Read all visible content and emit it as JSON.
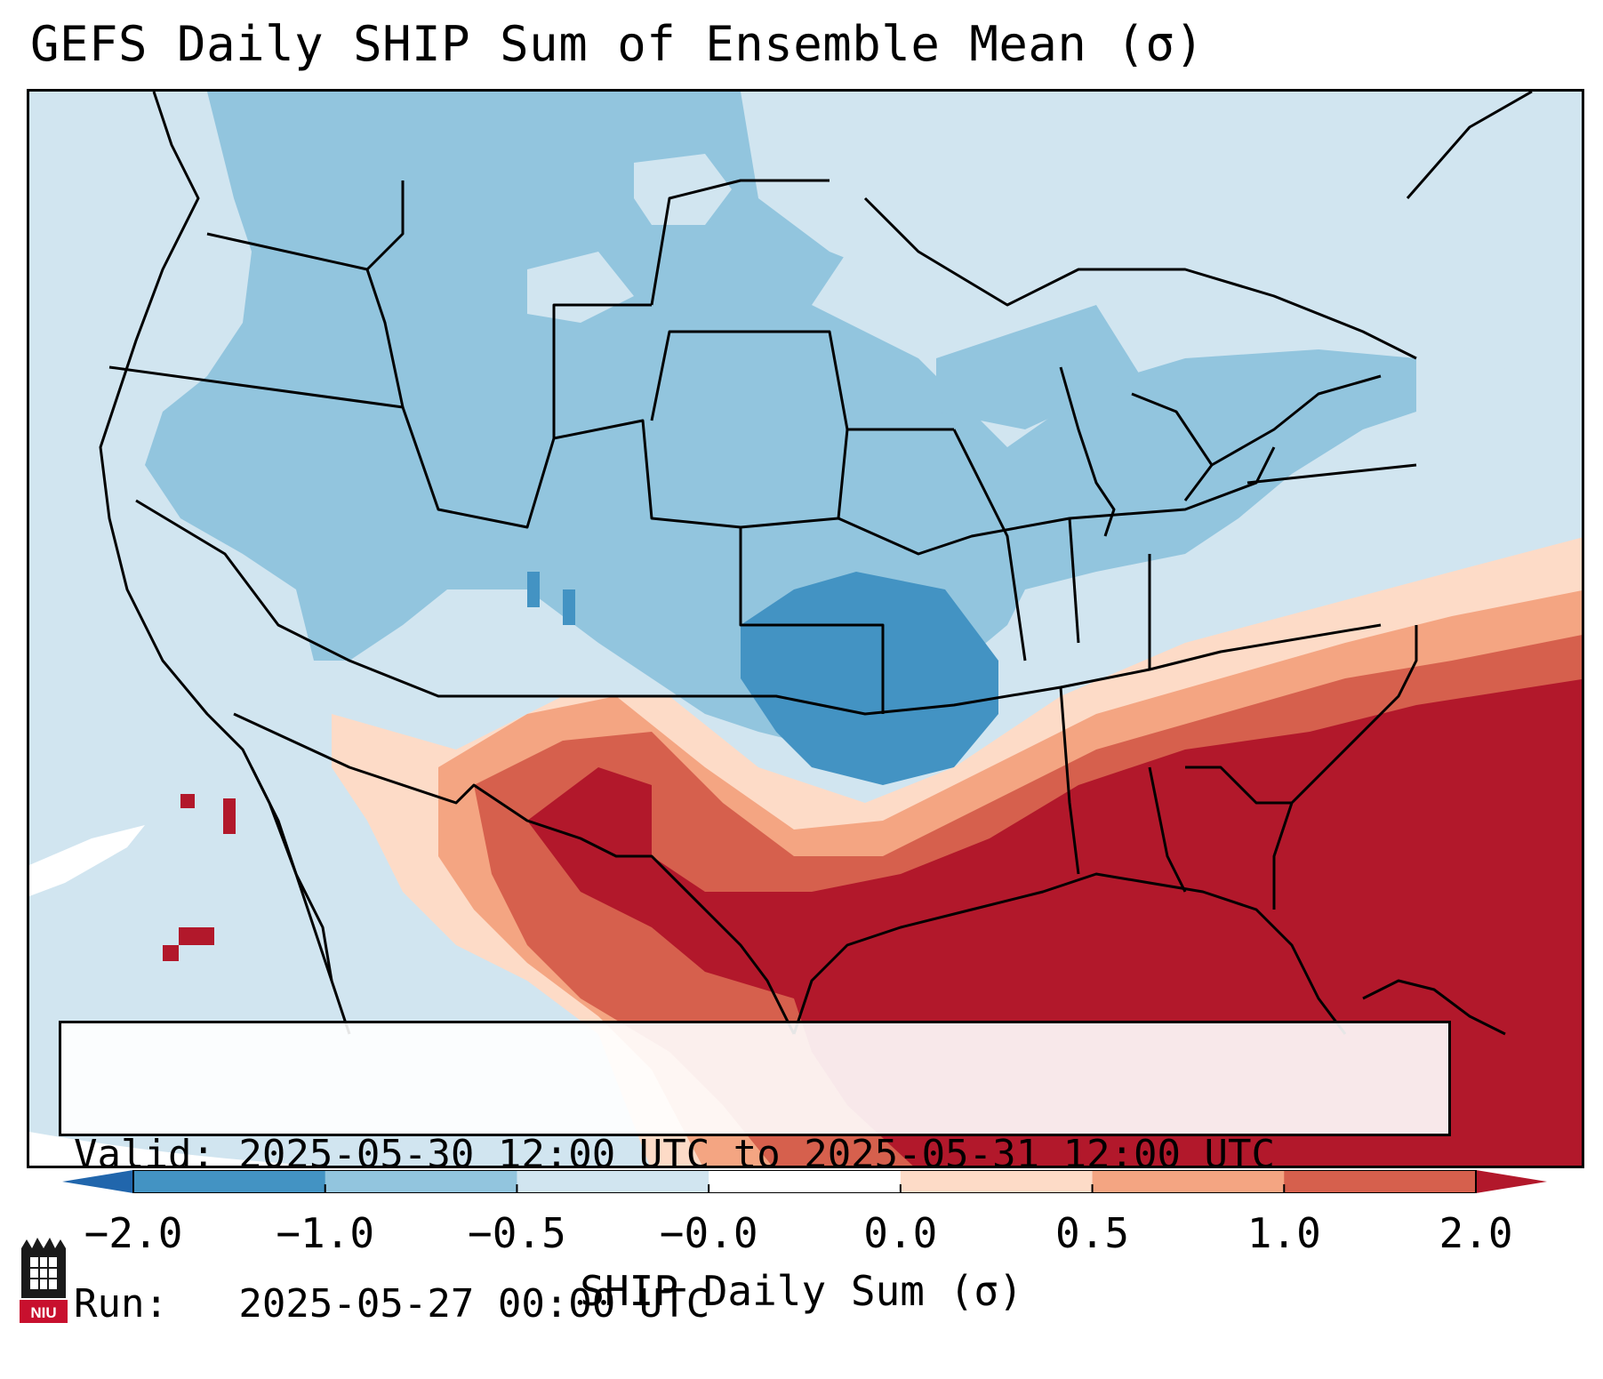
{
  "title": "GEFS Daily SHIP Sum of Ensemble Mean (σ)",
  "valid_text": {
    "line1": "Valid: 2025-05-30 12:00 UTC to 2025-05-31 12:00 UTC",
    "line2": "Run:   2025-05-27 00:00 UTC"
  },
  "colorbar": {
    "label": "SHIP Daily Sum (σ)",
    "ticks": [
      "−2.0",
      "−1.0",
      "−0.5",
      "−0.0",
      "0.0",
      "0.5",
      "1.0",
      "2.0"
    ],
    "bins": [
      {
        "range": "-2.0 to -1.0",
        "color": "#4393c3"
      },
      {
        "range": "-1.0 to -0.5",
        "color": "#92c5de"
      },
      {
        "range": "-0.5 to -0.0",
        "color": "#d1e5f0"
      },
      {
        "range": "-0.0 to 0.0",
        "color": "#ffffff"
      },
      {
        "range": "0.0 to 0.5",
        "color": "#fddbc7"
      },
      {
        "range": "0.5 to 1.0",
        "color": "#f4a582"
      },
      {
        "range": "1.0 to 2.0",
        "color": "#d6604d"
      }
    ],
    "under_color": "#2166ac",
    "over_color": "#b2182b"
  },
  "logo": {
    "text": "NIU",
    "color": "#c8102e"
  }
}
